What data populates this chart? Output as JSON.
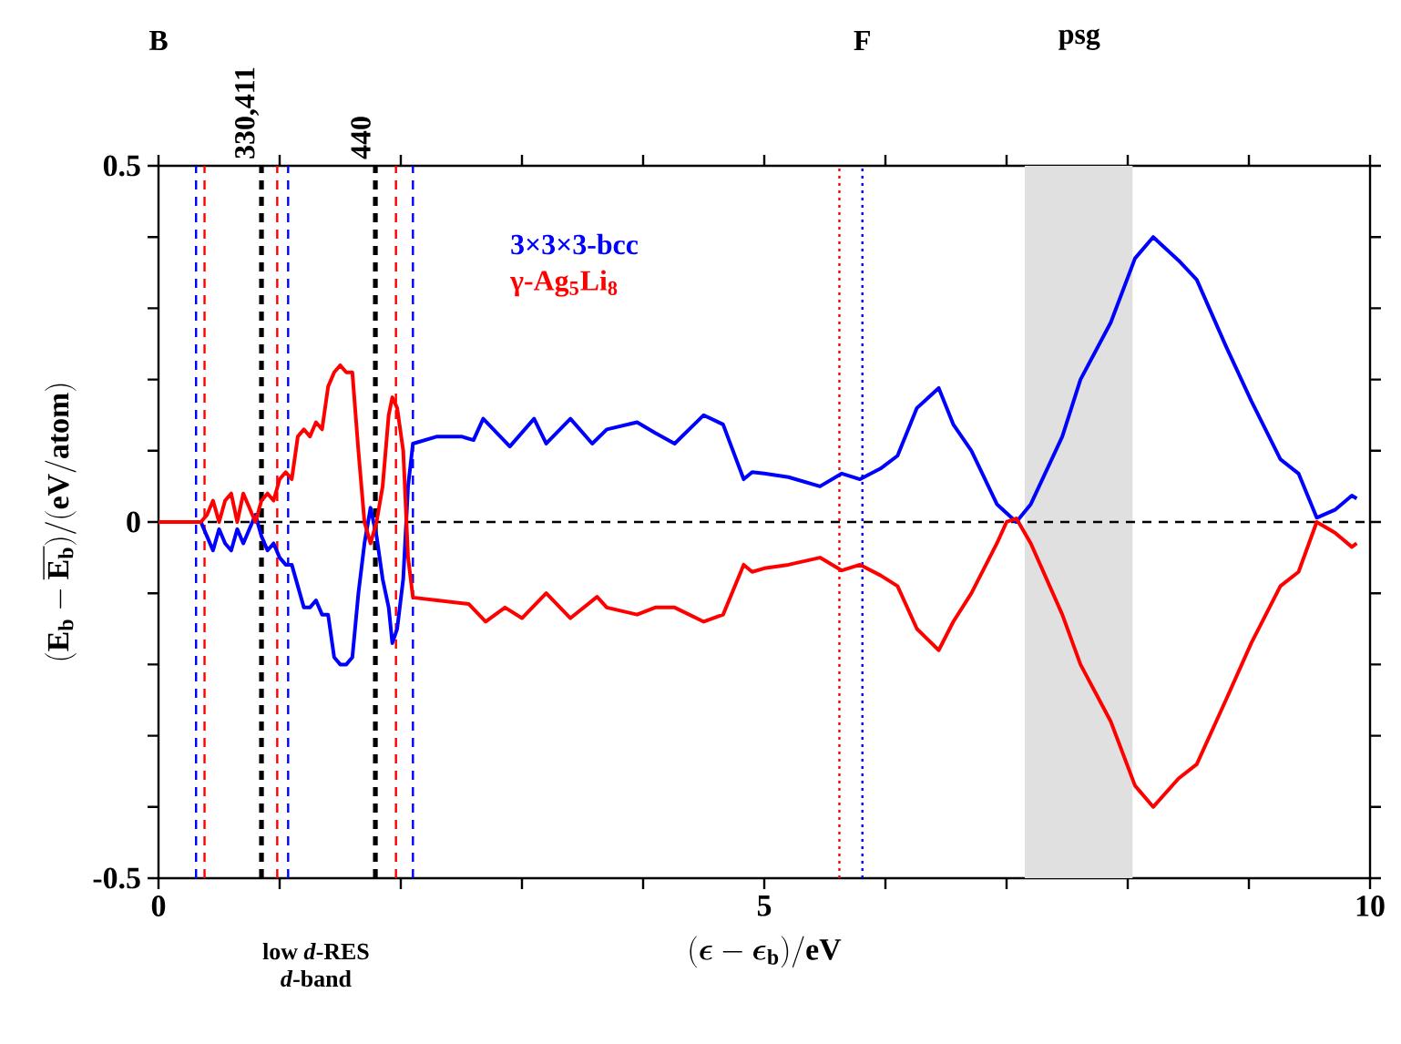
{
  "chart_data": {
    "type": "line",
    "xlabel": "(\\boldsymbol{\\epsilon} - \\boldsymbol{\\epsilon}_{\\mathbf{b}})/\\mathbf{eV}",
    "ylabel": "\\mathbf{(E_b - \\overline{E_b})/(eV/atom)}",
    "xlim": [
      0,
      10
    ],
    "ylim": [
      -0.5,
      0.5
    ],
    "xticks": [
      0,
      {
        "value": 1,
        "label": null
      },
      {
        "value": 2,
        "label": null
      },
      {
        "value": 3,
        "label": null
      },
      {
        "value": 4,
        "label": null
      },
      5,
      {
        "value": 6,
        "label": null
      },
      {
        "value": 7,
        "label": null
      },
      {
        "value": 8,
        "label": null
      },
      {
        "value": 9,
        "label": null
      },
      10
    ],
    "yticks": [
      -0.5,
      {
        "value": -0.4,
        "label": null
      },
      {
        "value": -0.3,
        "label": null
      },
      {
        "value": -0.2,
        "label": null
      },
      {
        "value": -0.1,
        "label": null
      },
      0,
      {
        "value": 0.1,
        "label": null
      },
      {
        "value": 0.2,
        "label": null
      },
      {
        "value": 0.3,
        "label": null
      },
      {
        "value": 0.4,
        "label": null
      },
      0.5
    ],
    "grid": false,
    "marker": "none",
    "line_style": "solid",
    "series": [
      {
        "name": "3×3×3-bcc",
        "color": "#0000ff",
        "x": [
          0,
          0.3,
          0.35,
          0.4,
          0.45,
          0.5,
          0.55,
          0.6,
          0.65,
          0.7,
          0.75,
          0.8,
          0.85,
          0.9,
          0.95,
          1.0,
          1.05,
          1.1,
          1.15,
          1.2,
          1.25,
          1.3,
          1.35,
          1.4,
          1.45,
          1.5,
          1.55,
          1.6,
          1.65,
          1.7,
          1.75,
          1.8,
          1.85,
          1.9,
          1.93,
          1.97,
          2.02,
          2.06,
          2.1,
          2.3,
          2.5,
          2.6,
          2.68,
          2.9,
          3.1,
          3.2,
          3.4,
          3.58,
          3.7,
          3.95,
          4.1,
          4.26,
          4.5,
          4.66,
          4.83,
          4.9,
          5.0,
          5.2,
          5.46,
          5.64,
          5.79,
          5.96,
          6.1,
          6.26,
          6.44,
          6.56,
          6.71,
          6.92,
          7.08,
          7.2,
          7.46,
          7.61,
          7.86,
          8.06,
          8.21,
          8.42,
          8.57,
          8.81,
          9.02,
          9.26,
          9.41,
          9.56,
          9.71,
          9.85,
          9.89
        ],
        "values": [
          0,
          0,
          0,
          -0.02,
          -0.04,
          -0.01,
          -0.03,
          -0.04,
          -0.01,
          -0.03,
          -0.01,
          0.01,
          -0.02,
          -0.04,
          -0.03,
          -0.05,
          -0.06,
          -0.06,
          -0.09,
          -0.12,
          -0.12,
          -0.11,
          -0.13,
          -0.13,
          -0.19,
          -0.2,
          -0.2,
          -0.19,
          -0.1,
          -0.03,
          0.02,
          -0.02,
          -0.08,
          -0.12,
          -0.17,
          -0.15,
          -0.08,
          0.05,
          0.11,
          0.12,
          0.12,
          0.115,
          0.145,
          0.106,
          0.145,
          0.11,
          0.145,
          0.11,
          0.13,
          0.14,
          0.125,
          0.11,
          0.15,
          0.137,
          0.06,
          0.07,
          0.068,
          0.063,
          0.05,
          0.068,
          0.06,
          0.075,
          0.093,
          0.16,
          0.188,
          0.137,
          0.1,
          0.025,
          0.0,
          0.025,
          0.12,
          0.2,
          0.28,
          0.37,
          0.4,
          0.367,
          0.34,
          0.247,
          0.17,
          0.088,
          0.068,
          0.006,
          0.017,
          0.037,
          0.033
        ]
      },
      {
        "name": "γ-Ag$_{5}$Li$_{8}$",
        "color": "#ff0000",
        "x": [
          0,
          0.35,
          0.4,
          0.45,
          0.5,
          0.55,
          0.6,
          0.65,
          0.7,
          0.75,
          0.8,
          0.85,
          0.9,
          0.95,
          1.0,
          1.05,
          1.1,
          1.15,
          1.2,
          1.25,
          1.3,
          1.35,
          1.4,
          1.45,
          1.5,
          1.55,
          1.6,
          1.65,
          1.7,
          1.75,
          1.8,
          1.85,
          1.9,
          1.93,
          1.97,
          2.02,
          2.06,
          2.1,
          2.3,
          2.56,
          2.7,
          2.86,
          3.0,
          3.2,
          3.4,
          3.62,
          3.7,
          3.95,
          4.1,
          4.26,
          4.5,
          4.66,
          4.83,
          4.9,
          5.0,
          5.2,
          5.46,
          5.64,
          5.79,
          5.96,
          6.1,
          6.26,
          6.44,
          6.56,
          6.71,
          6.92,
          7.0,
          7.08,
          7.2,
          7.46,
          7.61,
          7.86,
          8.06,
          8.21,
          8.42,
          8.57,
          8.81,
          9.02,
          9.26,
          9.41,
          9.56,
          9.71,
          9.85,
          9.89
        ],
        "values": [
          0,
          0,
          0.01,
          0.03,
          0.0,
          0.03,
          0.04,
          0.0,
          0.04,
          0.02,
          0.0,
          0.03,
          0.04,
          0.03,
          0.06,
          0.07,
          0.06,
          0.12,
          0.13,
          0.12,
          0.14,
          0.13,
          0.19,
          0.21,
          0.22,
          0.21,
          0.21,
          0.1,
          0.0,
          -0.03,
          0.0,
          0.05,
          0.15,
          0.175,
          0.16,
          0.1,
          -0.05,
          -0.106,
          -0.11,
          -0.115,
          -0.14,
          -0.12,
          -0.135,
          -0.1,
          -0.135,
          -0.105,
          -0.12,
          -0.13,
          -0.12,
          -0.12,
          -0.14,
          -0.13,
          -0.06,
          -0.07,
          -0.065,
          -0.06,
          -0.05,
          -0.068,
          -0.06,
          -0.075,
          -0.09,
          -0.15,
          -0.18,
          -0.14,
          -0.1,
          -0.03,
          0.0,
          0.005,
          -0.03,
          -0.13,
          -0.2,
          -0.28,
          -0.37,
          -0.4,
          -0.36,
          -0.34,
          -0.25,
          -0.17,
          -0.09,
          -0.07,
          0.0,
          -0.015,
          -0.035,
          -0.03
        ]
      }
    ],
    "ref_lines": [
      {
        "axis": "y",
        "value": 0,
        "color": "#000000",
        "line_style": "dashed"
      },
      {
        "axis": "x",
        "value": 0.31,
        "color": "#0000ff",
        "line_style": "dashed"
      },
      {
        "axis": "x",
        "value": 0.38,
        "color": "#ff0000",
        "line_style": "dashed"
      },
      {
        "axis": "x",
        "value": 0.85,
        "color": "#000000",
        "line_style": "dashed"
      },
      {
        "axis": "x",
        "value": 0.98,
        "color": "#ff0000",
        "line_style": "dashed"
      },
      {
        "axis": "x",
        "value": 1.07,
        "color": "#0000ff",
        "line_style": "dashed"
      },
      {
        "axis": "x",
        "value": 1.79,
        "color": "#000000",
        "line_style": "dashed"
      },
      {
        "axis": "x",
        "value": 1.96,
        "color": "#ff0000",
        "line_style": "dashed"
      },
      {
        "axis": "x",
        "value": 2.1,
        "color": "#0000ff",
        "line_style": "dashed"
      },
      {
        "axis": "x",
        "value": 5.62,
        "color": "#ff0000",
        "line_style": "dotted"
      },
      {
        "axis": "x",
        "value": 5.81,
        "color": "#0000ff",
        "line_style": "dotted"
      }
    ],
    "bands": [
      {
        "axis": "x",
        "from": 7.15,
        "to": 8.04,
        "color": "#e0e0e0"
      }
    ],
    "annotations": [
      "B",
      "330,411",
      "440",
      "F",
      "psg",
      "low *d*-RES",
      "*d*-band"
    ]
  }
}
